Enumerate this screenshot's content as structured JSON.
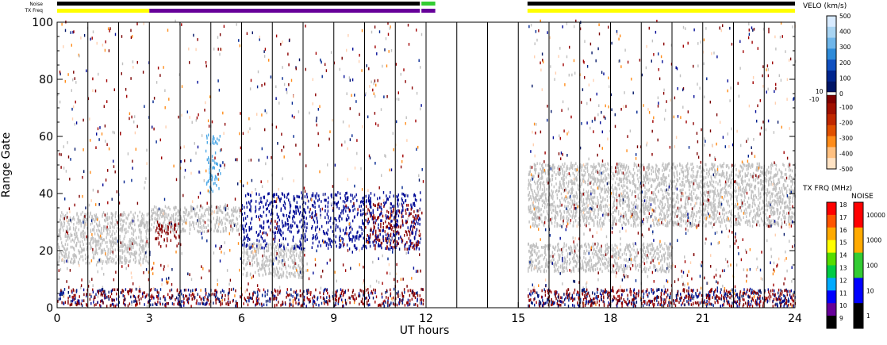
{
  "chart_data": {
    "type": "heatmap",
    "xlabel": "UT hours",
    "ylabel": "Range Gate",
    "xlim": [
      0,
      24
    ],
    "ylim": [
      0,
      100
    ],
    "x_ticks": [
      "0",
      "3",
      "6",
      "9",
      "12",
      "15",
      "18",
      "21",
      "24"
    ],
    "y_ticks": [
      "0",
      "20",
      "40",
      "60",
      "80",
      "100"
    ],
    "x_tick_values": [
      0,
      3,
      6,
      9,
      12,
      15,
      18,
      21,
      24
    ],
    "y_tick_values": [
      0,
      20,
      40,
      60,
      80,
      100
    ],
    "data_gaps_ut": [
      [
        12,
        15.1
      ]
    ],
    "top_bars": {
      "noise_label": "Noise",
      "txfreq_label": "TX Freq",
      "noise_segments": [
        {
          "from": 0,
          "to": 11.8,
          "color": "#000000"
        },
        {
          "from": 11.85,
          "to": 12.3,
          "color": "#33cc33"
        },
        {
          "from": 15.3,
          "to": 24,
          "color": "#000000"
        }
      ],
      "txfreq_segments": [
        {
          "from": 0,
          "to": 3.0,
          "color": "#ffff00"
        },
        {
          "from": 3.0,
          "to": 11.8,
          "color": "#660099"
        },
        {
          "from": 11.85,
          "to": 12.3,
          "color": "#660099"
        },
        {
          "from": 15.3,
          "to": 24,
          "color": "#ffff00"
        }
      ]
    },
    "features": [
      {
        "name": "ground scatter",
        "color": "#c0c0c0",
        "ut": [
          0,
          3
        ],
        "gates": [
          15,
          33
        ]
      },
      {
        "name": "ground scatter",
        "color": "#c0c0c0",
        "ut": [
          3,
          6
        ],
        "gates": [
          26,
          35
        ]
      },
      {
        "name": "ground scatter",
        "color": "#c0c0c0",
        "ut": [
          6,
          8
        ],
        "gates": [
          10,
          22
        ]
      },
      {
        "name": "ground scatter",
        "color": "#c0c0c0",
        "ut": [
          15.3,
          24
        ],
        "gates": [
          28,
          50
        ]
      },
      {
        "name": "ground scatter",
        "color": "#c0c0c0",
        "ut": [
          15.3,
          20
        ],
        "gates": [
          12,
          22
        ]
      },
      {
        "name": "negative velocity",
        "color": "#8b0000",
        "ut": [
          3.2,
          4
        ],
        "gates": [
          20,
          30
        ]
      },
      {
        "name": "negative velocity",
        "color": "#8b0000",
        "ut": [
          10,
          11.8
        ],
        "gates": [
          20,
          36
        ]
      },
      {
        "name": "positive velocity",
        "color": "#000a96",
        "ut": [
          6,
          11.8
        ],
        "gates": [
          20,
          40
        ]
      },
      {
        "name": "positive velocity",
        "color": "#4fa9e6",
        "ut": [
          4.8,
          5.3
        ],
        "gates": [
          40,
          60
        ]
      }
    ]
  },
  "velo_scale": {
    "title": "VELO (km/s)",
    "pos_ticks": [
      "500",
      "400",
      "300",
      "200",
      "100",
      "0"
    ],
    "neg_ticks": [
      "-100",
      "-200",
      "-300",
      "-400",
      "-500"
    ],
    "mid_labels": [
      "10",
      "-10"
    ],
    "colors": [
      "#d8ebff",
      "#a8d4f2",
      "#6fb6ea",
      "#2e8bd9",
      "#1050c0",
      "#00258f",
      "#001466",
      "#800000",
      "#a01000",
      "#c02800",
      "#e05000",
      "#ff8c1a",
      "#ffc080",
      "#ffe3c4"
    ]
  },
  "txfrq_scale": {
    "title": "TX FRQ (MHz)",
    "ticks": [
      "18",
      "17",
      "16",
      "15",
      "14",
      "13",
      "12",
      "11",
      "10",
      "9"
    ],
    "colors": [
      "#ff0000",
      "#ff5500",
      "#ffaa00",
      "#ffff00",
      "#55dd00",
      "#00cc44",
      "#00aaff",
      "#0000ff",
      "#660099",
      "#000000"
    ]
  },
  "noise_scale": {
    "title": "NOISE",
    "ticks": [
      "10000",
      "1000",
      "100",
      "10",
      "1"
    ],
    "colors": [
      "#ff0000",
      "#ffaa00",
      "#33cc33",
      "#0000ff",
      "#000000"
    ]
  }
}
